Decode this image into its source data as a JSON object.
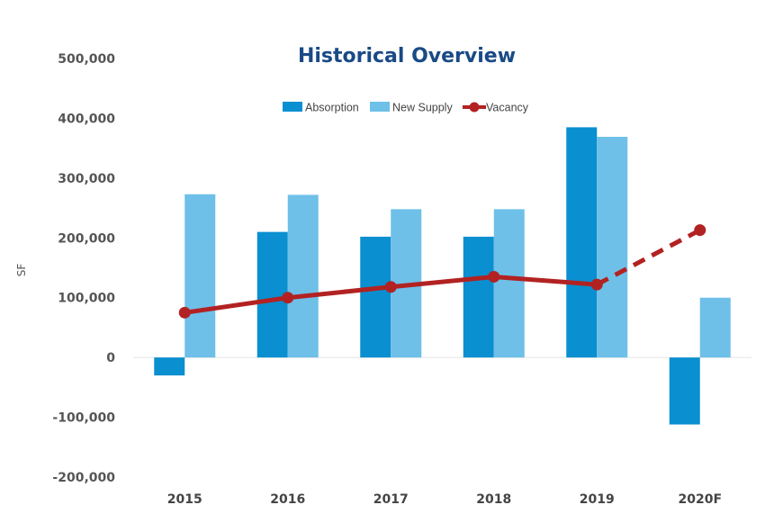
{
  "chart_data": {
    "type": "bar",
    "title": "Historical Overview",
    "xlabel": "",
    "ylabel": "SF",
    "categories": [
      "2015",
      "2016",
      "2017",
      "2018",
      "2019",
      "2020F"
    ],
    "ylim": [
      -200000,
      500000
    ],
    "yticks": [
      "500,000",
      "400,000",
      "300,000",
      "200,000",
      "100,000",
      "0",
      "-100,000",
      "-200,000"
    ],
    "ytick_values": [
      500000,
      400000,
      300000,
      200000,
      100000,
      0,
      -100000,
      -200000
    ],
    "series": [
      {
        "name": "Absorption",
        "kind": "bar",
        "color": "#0a8fd0",
        "values": [
          -30000,
          210000,
          202000,
          202000,
          385000,
          -112000
        ]
      },
      {
        "name": "New Supply",
        "kind": "bar",
        "color": "#6ec0e8",
        "values": [
          273000,
          272000,
          248000,
          248000,
          369000,
          100000
        ]
      },
      {
        "name": "Vacancy",
        "kind": "line",
        "color": "#b22222",
        "values": [
          75000,
          100000,
          118000,
          135000,
          122000,
          213000
        ],
        "forecast_from_index": 4
      }
    ],
    "legend": "top-center",
    "grid": false
  }
}
